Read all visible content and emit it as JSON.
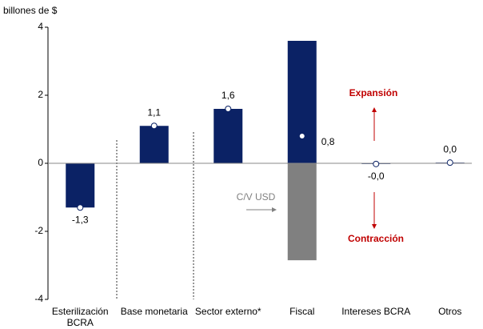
{
  "chart_data": {
    "type": "bar",
    "ylabel": "billones de $",
    "categories": [
      [
        "Esterilización",
        "BCRA"
      ],
      [
        "Base monetaria"
      ],
      [
        "Sector externo*"
      ],
      [
        "Fiscal"
      ],
      [
        "Intereses BCRA"
      ],
      [
        "Otros"
      ]
    ],
    "bars": {
      "color": "#0b2265",
      "values": [
        -1.3,
        1.1,
        1.6,
        3.6,
        -0.02,
        0.02
      ]
    },
    "cv_bars": {
      "color": "#808080",
      "values": [
        null,
        null,
        null,
        -2.85,
        null,
        null
      ]
    },
    "net": {
      "values": [
        -1.3,
        1.1,
        1.6,
        0.8,
        -0.02,
        0.02
      ],
      "value_labels": [
        "-1,3",
        "1,1",
        "1,6",
        "0,8",
        "-0,0",
        "0,0"
      ]
    },
    "ylim": [
      -4,
      4
    ],
    "yticks": [
      -4,
      -2,
      0,
      2,
      4
    ],
    "annotations": {
      "expansion": "Expansión",
      "contraction": "Contracción",
      "cv": "C/V USD"
    }
  }
}
